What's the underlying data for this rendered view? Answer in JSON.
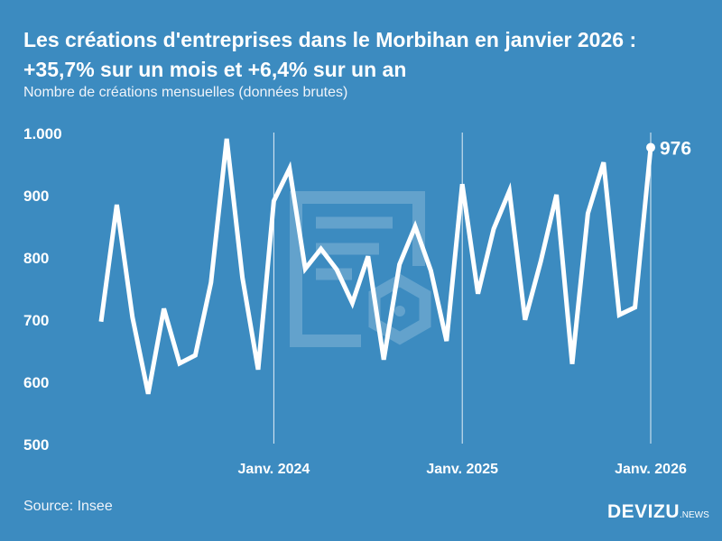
{
  "header": {
    "title": "Les créations d'entreprises dans le Morbihan en janvier 2026 : +35,7% sur un mois et +6,4% sur un an",
    "subtitle": "Nombre de créations mensuelles (données brutes)"
  },
  "footer": {
    "source": "Source: Insee",
    "logo_main": "DEVIZU",
    "logo_suffix": ".NEWS"
  },
  "colors": {
    "background": "#3c8bc0",
    "line": "#ffffff"
  },
  "chart_data": {
    "type": "line",
    "title": "Les créations d'entreprises dans le Morbihan en janvier 2026 : +35,7% sur un mois et +6,4% sur un an",
    "ylabel": "Nombre de créations mensuelles (données brutes)",
    "ylim": [
      500,
      1000
    ],
    "yticks": [
      "500",
      "600",
      "700",
      "800",
      "900",
      "1.000"
    ],
    "ytick_values": [
      500,
      600,
      700,
      800,
      900,
      1000
    ],
    "xtick_labels": [
      "Janv. 2024",
      "Janv. 2025",
      "Janv. 2026"
    ],
    "xtick_index": [
      11,
      23,
      35
    ],
    "x_start": "2023-02",
    "x_end": "2026-01",
    "grid": "vertical lines at January",
    "last_label": "976",
    "series": [
      {
        "values": [
          696,
          884,
          703,
          580,
          717,
          629,
          642,
          759,
          990,
          767,
          619,
          890,
          942,
          781,
          813,
          780,
          726,
          801,
          635,
          788,
          849,
          778,
          665,
          917,
          741,
          845,
          906,
          699,
          793,
          900,
          628,
          870,
          952,
          707,
          719,
          976
        ]
      }
    ]
  }
}
